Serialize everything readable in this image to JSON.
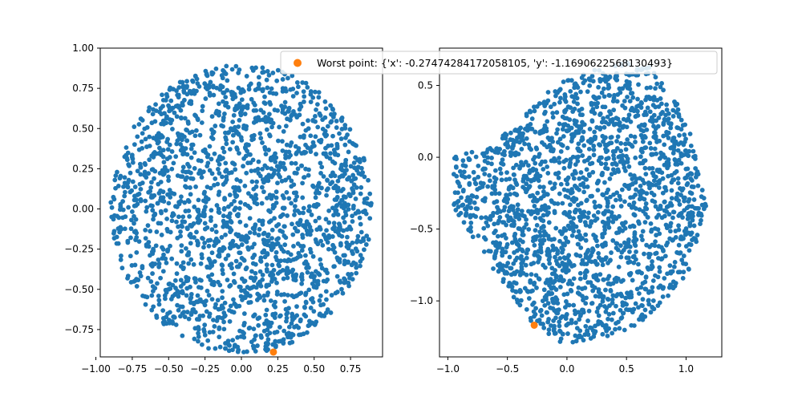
{
  "chart_data": [
    {
      "type": "scatter",
      "title": "",
      "xlabel": "",
      "ylabel": "",
      "xlim": [
        -0.97,
        0.97
      ],
      "ylim": [
        -0.92,
        1.0
      ],
      "xticks": [
        -1.0,
        -0.75,
        -0.5,
        -0.25,
        0.0,
        0.25,
        0.5,
        0.75
      ],
      "xtick_labels": [
        "−1.00",
        "−0.75",
        "−0.50",
        "−0.25",
        "0.00",
        "0.25",
        "0.50",
        "0.75"
      ],
      "yticks": [
        -0.75,
        -0.5,
        -0.25,
        0.0,
        0.25,
        0.5,
        0.75,
        1.0
      ],
      "ytick_labels": [
        "−0.75",
        "−0.50",
        "−0.25",
        "0.00",
        "0.25",
        "0.50",
        "0.75",
        "1.00"
      ],
      "grid": false,
      "series": [
        {
          "color": "#1f77b4",
          "shape": "disk",
          "center": [
            0.0,
            0.0
          ],
          "radius": 0.9,
          "count": 2000
        },
        {
          "color": "#ff7f0e",
          "points": [
            {
              "x": 0.22,
              "y": -0.89
            }
          ]
        }
      ]
    },
    {
      "type": "scatter",
      "title": "",
      "xlabel": "",
      "ylabel": "",
      "xlim": [
        -1.07,
        1.3
      ],
      "ylim": [
        -1.39,
        0.76
      ],
      "xticks": [
        -1.0,
        -0.5,
        0.0,
        0.5,
        1.0
      ],
      "xtick_labels": [
        "−1.0",
        "−0.5",
        "0.0",
        "0.5",
        "1.0"
      ],
      "yticks": [
        -1.0,
        -0.5,
        0.0,
        0.5
      ],
      "ytick_labels": [
        "−1.0",
        "−0.5",
        "0.0",
        "0.5"
      ],
      "grid": false,
      "legend": {
        "placement": "top-right",
        "entries": [
          {
            "label": "Worst point: {'x': -0.27474284172058105, 'y': -1.1690622568130493}",
            "color": "#ff7f0e"
          }
        ]
      },
      "series": [
        {
          "color": "#1f77b4",
          "shape": "polygon",
          "vertices": [
            [
              -0.95,
              0.0
            ],
            [
              -0.6,
              0.1
            ],
            [
              -0.1,
              0.5
            ],
            [
              0.4,
              0.68
            ],
            [
              0.7,
              0.63
            ],
            [
              1.0,
              0.3
            ],
            [
              1.17,
              -0.35
            ],
            [
              1.0,
              -0.85
            ],
            [
              0.55,
              -1.2
            ],
            [
              0.0,
              -1.32
            ],
            [
              -0.3,
              -1.15
            ],
            [
              -0.6,
              -0.8
            ],
            [
              -0.95,
              -0.35
            ]
          ],
          "count": 2000
        },
        {
          "color": "#ff7f0e",
          "points": [
            {
              "x": -0.27474284172058105,
              "y": -1.1690622568130493
            }
          ]
        }
      ]
    }
  ]
}
